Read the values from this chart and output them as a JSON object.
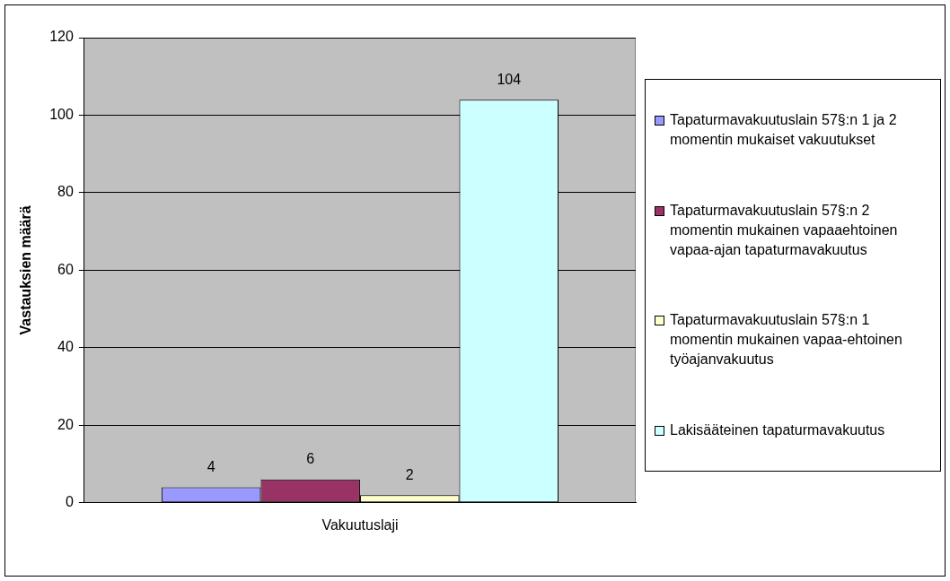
{
  "chart_data": {
    "type": "bar",
    "categories": [
      "Vakuutuslaji"
    ],
    "series": [
      {
        "name": "Tapaturmavakuutuslain 57§:n 1 ja 2 momentin mukaiset vakuutukset",
        "color": "#9999ff",
        "values": [
          4
        ]
      },
      {
        "name": "Tapaturmavakuutuslain 57§:n 2 momentin mukainen vapaaehtoinen vapaa-ajan tapaturmavakuutus",
        "color": "#993366",
        "values": [
          6
        ]
      },
      {
        "name": "Tapaturmavakuutuslain 57§:n 1 momentin mukainen vapaa-ehtoinen työajanvakuutus",
        "color": "#ffffcc",
        "values": [
          2
        ]
      },
      {
        "name": "Lakisääteinen tapaturmavakuutus",
        "color": "#ccffff",
        "values": [
          104
        ]
      }
    ],
    "ylabel": "Vastauksien määrä",
    "ylim": [
      0,
      120
    ],
    "yticks": [
      0,
      20,
      40,
      60,
      80,
      100,
      120
    ],
    "grid": "y",
    "legend": "right",
    "data_labels": true
  }
}
